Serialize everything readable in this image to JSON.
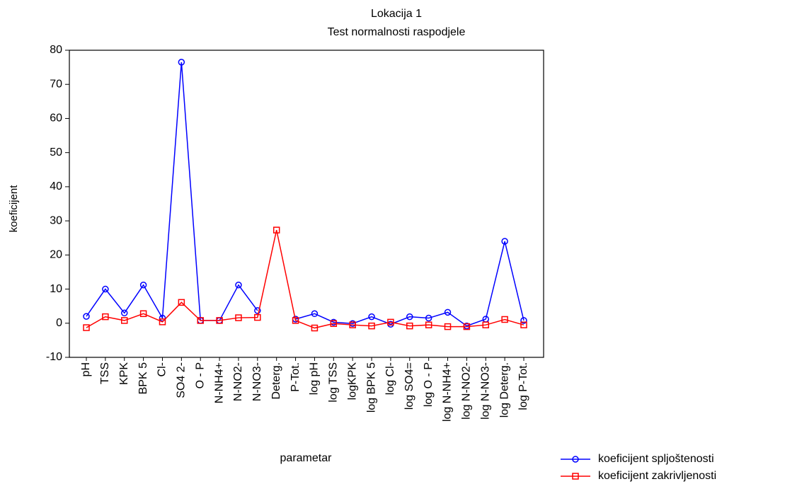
{
  "chart_data": {
    "type": "line",
    "title": "Lokacija 1",
    "subtitle": "Test normalnosti raspodjele",
    "x_label": "parametar",
    "y_label": "koeficijent",
    "categories": [
      "pH",
      "TSS",
      "KPK",
      "BPK 5",
      "Cl-",
      "SO4 2-",
      "O - P",
      "N-NH4+",
      "N-NO2-",
      "N-NO3-",
      "Deterg.",
      "P-Tot.",
      "log pH",
      "log TSS",
      "logKPK",
      "log BPK 5",
      "log Cl-",
      "log SO4=",
      "log O - P",
      "log N-NH4+",
      "log N-NO2-",
      "log N-NO3-",
      "log Deterg.",
      "log P-Tot."
    ],
    "series": [
      {
        "name": "koeficijent spljoštenosti",
        "color": "#0000ff",
        "marker": "circle",
        "values": [
          2,
          10,
          3,
          11.2,
          1.5,
          76.5,
          0.8,
          0.8,
          11.2,
          3.7,
          null,
          1.2,
          2.8,
          0.3,
          -0.1,
          1.9,
          -0.3,
          1.9,
          1.5,
          3.2,
          -0.8,
          1.2,
          24,
          0.8
        ]
      },
      {
        "name": "koeficijent zakrivljenosti",
        "color": "#ff0000",
        "marker": "square",
        "values": [
          -1.3,
          1.9,
          0.8,
          2.8,
          0.4,
          6.1,
          0.8,
          0.8,
          1.6,
          1.7,
          27.3,
          0.8,
          -1.4,
          -0.1,
          -0.5,
          -0.8,
          0.3,
          -0.8,
          -0.5,
          -1,
          -1,
          -0.5,
          1.1,
          -0.5
        ]
      }
    ],
    "ylim": [
      -10,
      80
    ],
    "yticks": [
      -10,
      0,
      10,
      20,
      30,
      40,
      50,
      60,
      70,
      80
    ],
    "legend": "bottom-right"
  }
}
